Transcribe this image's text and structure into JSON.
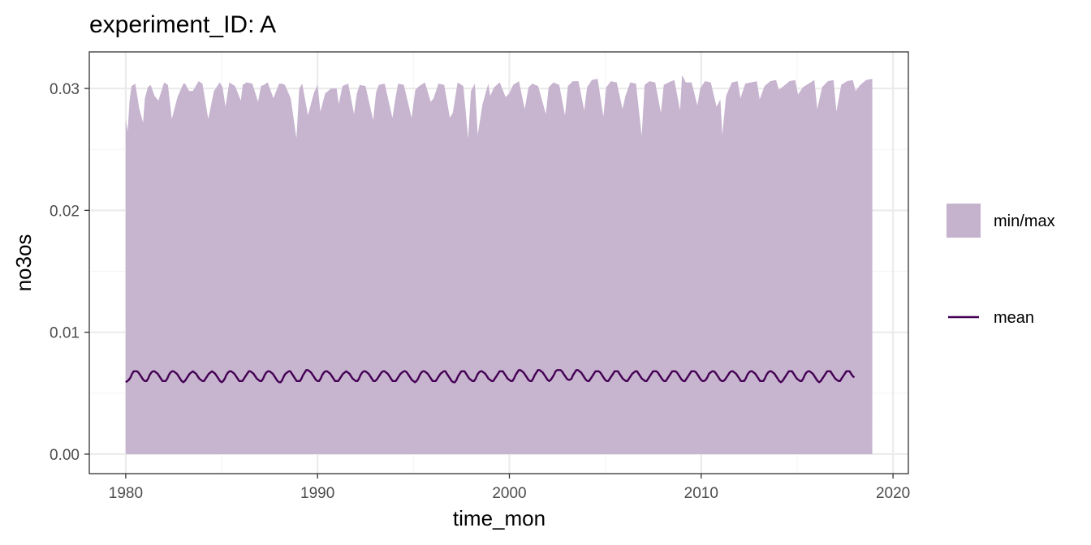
{
  "chart_data": {
    "type": "area",
    "title": "experiment_ID: A",
    "xlabel": "time_mon",
    "ylabel": "no3os",
    "xlim": [
      1978.1,
      2020.8
    ],
    "ylim": [
      -0.0016,
      0.033
    ],
    "x_ticks": [
      1980,
      1990,
      2000,
      2010,
      2020
    ],
    "x_tick_labels": [
      "1980",
      "1990",
      "2000",
      "2010",
      "2020"
    ],
    "y_ticks": [
      0.0,
      0.01,
      0.02,
      0.03
    ],
    "y_tick_labels": [
      "0.00",
      "0.01",
      "0.02",
      "0.03"
    ],
    "grid": true,
    "legend_position": "right",
    "legend": [
      {
        "label": "min/max",
        "kind": "fill"
      },
      {
        "label": "mean",
        "kind": "line"
      }
    ],
    "colors": {
      "band_fill": "#c5b2cd",
      "mean_line": "#440154",
      "panel_border": "#333333",
      "grid_major": "#ebebeb",
      "grid_minor": "#f5f5f5"
    },
    "x_range": [
      1980.0,
      2018.92
    ],
    "series": [
      {
        "name": "min/max",
        "kind": "ribbon",
        "x": [
          1980.0,
          1980.1,
          1980.2,
          1980.3,
          1980.5,
          1980.7,
          1980.9,
          1981.0,
          1981.15,
          1981.3,
          1981.5,
          1981.7,
          1982.0,
          1982.2,
          1982.4,
          1982.7,
          1983.0,
          1983.1,
          1983.3,
          1983.5,
          1983.8,
          1984.0,
          1984.3,
          1984.6,
          1984.9,
          1985.05,
          1985.2,
          1985.4,
          1985.7,
          1986.0,
          1986.1,
          1986.3,
          1986.6,
          1986.9,
          1987.05,
          1987.2,
          1987.4,
          1987.7,
          1988.0,
          1988.15,
          1988.3,
          1988.6,
          1988.9,
          1989.05,
          1989.2,
          1989.5,
          1989.8,
          1990.0,
          1990.15,
          1990.4,
          1990.7,
          1991.0,
          1991.1,
          1991.3,
          1991.6,
          1991.9,
          1992.05,
          1992.2,
          1992.5,
          1992.9,
          1993.05,
          1993.2,
          1993.5,
          1993.9,
          1994.05,
          1994.2,
          1994.5,
          1994.9,
          1995.1,
          1995.3,
          1995.6,
          1995.9,
          1996.05,
          1996.3,
          1996.6,
          1996.9,
          1997.05,
          1997.3,
          1997.6,
          1997.85,
          1998.0,
          1998.2,
          1998.35,
          1998.6,
          1998.9,
          1999.0,
          1999.2,
          1999.5,
          1999.8,
          2000.0,
          2000.2,
          2000.5,
          2000.8,
          2001.0,
          2001.2,
          2001.5,
          2001.9,
          2002.05,
          2002.3,
          2002.6,
          2002.9,
          2003.05,
          2003.3,
          2003.6,
          2003.9,
          2004.05,
          2004.3,
          2004.6,
          2004.9,
          2005.05,
          2005.3,
          2005.6,
          2005.9,
          2006.05,
          2006.3,
          2006.6,
          2006.9,
          2007.05,
          2007.3,
          2007.6,
          2007.9,
          2008.05,
          2008.3,
          2008.6,
          2008.9,
          2009.0,
          2009.2,
          2009.5,
          2009.8,
          2009.95,
          2010.2,
          2010.5,
          2010.8,
          2011.0,
          2011.1,
          2011.3,
          2011.6,
          2011.9,
          2012.05,
          2012.3,
          2012.6,
          2012.9,
          2013.05,
          2013.3,
          2013.6,
          2013.9,
          2014.05,
          2014.3,
          2014.6,
          2014.9,
          2015.05,
          2015.3,
          2015.6,
          2015.9,
          2016.05,
          2016.3,
          2016.6,
          2016.9,
          2017.05,
          2017.3,
          2017.6,
          2017.9,
          2018.05,
          2018.3,
          2018.6,
          2018.92
        ],
        "max": [
          0.0275,
          0.0265,
          0.029,
          0.0302,
          0.0304,
          0.0284,
          0.0272,
          0.0292,
          0.0301,
          0.0303,
          0.0294,
          0.029,
          0.0305,
          0.0303,
          0.0275,
          0.0293,
          0.0304,
          0.0304,
          0.0298,
          0.0298,
          0.0306,
          0.0304,
          0.0275,
          0.0298,
          0.0305,
          0.0301,
          0.0285,
          0.0305,
          0.0302,
          0.029,
          0.0303,
          0.0305,
          0.0304,
          0.0289,
          0.0302,
          0.0303,
          0.0305,
          0.0292,
          0.0304,
          0.0304,
          0.0303,
          0.0292,
          0.0259,
          0.03,
          0.0304,
          0.0278,
          0.0296,
          0.0303,
          0.0281,
          0.0296,
          0.03,
          0.03,
          0.0287,
          0.0302,
          0.0304,
          0.0279,
          0.0296,
          0.0303,
          0.0302,
          0.0274,
          0.0297,
          0.0303,
          0.0304,
          0.0276,
          0.0291,
          0.0304,
          0.0303,
          0.0276,
          0.0299,
          0.0302,
          0.0305,
          0.0289,
          0.0292,
          0.0304,
          0.0303,
          0.0276,
          0.028,
          0.0305,
          0.0302,
          0.0259,
          0.0298,
          0.0304,
          0.0262,
          0.0287,
          0.0304,
          0.0294,
          0.0301,
          0.0305,
          0.0293,
          0.0296,
          0.0303,
          0.0306,
          0.0283,
          0.0301,
          0.0304,
          0.0302,
          0.0279,
          0.0301,
          0.0305,
          0.0303,
          0.0278,
          0.0302,
          0.0306,
          0.0306,
          0.0282,
          0.0301,
          0.0307,
          0.0308,
          0.0277,
          0.0301,
          0.0306,
          0.0305,
          0.0283,
          0.0294,
          0.0305,
          0.0304,
          0.0261,
          0.0303,
          0.0306,
          0.0305,
          0.028,
          0.0303,
          0.0305,
          0.0307,
          0.0282,
          0.0311,
          0.0305,
          0.0305,
          0.0286,
          0.03,
          0.0306,
          0.0305,
          0.0285,
          0.0291,
          0.0262,
          0.0294,
          0.0305,
          0.0306,
          0.0292,
          0.0304,
          0.0305,
          0.0306,
          0.0291,
          0.0302,
          0.0306,
          0.0307,
          0.0299,
          0.0302,
          0.0306,
          0.0307,
          0.0295,
          0.0301,
          0.0304,
          0.0307,
          0.0283,
          0.0301,
          0.0306,
          0.0307,
          0.0281,
          0.0303,
          0.0306,
          0.0307,
          0.0298,
          0.0303,
          0.0307,
          0.0308
        ],
        "min": 0.0
      },
      {
        "name": "mean",
        "kind": "line",
        "x_start": 1980.0,
        "step": 0.0833,
        "values": [
          0.0059,
          0.006,
          0.0061,
          0.0063,
          0.0066,
          0.0068,
          0.0068,
          0.0068,
          0.0067,
          0.0065,
          0.0063,
          0.0061,
          0.006,
          0.006,
          0.0062,
          0.0065,
          0.0067,
          0.0068,
          0.0068,
          0.0067,
          0.0066,
          0.0064,
          0.0062,
          0.006,
          0.006,
          0.006,
          0.0062,
          0.0065,
          0.0067,
          0.0068,
          0.0068,
          0.0067,
          0.0066,
          0.0064,
          0.0062,
          0.006,
          0.0059,
          0.006,
          0.0062,
          0.0064,
          0.0066,
          0.0067,
          0.0068,
          0.0067,
          0.0066,
          0.0064,
          0.0062,
          0.0061,
          0.006,
          0.006,
          0.0062,
          0.0064,
          0.0066,
          0.0067,
          0.0068,
          0.0067,
          0.0066,
          0.0064,
          0.0062,
          0.006,
          0.0059,
          0.006,
          0.0062,
          0.0065,
          0.0067,
          0.0068,
          0.0068,
          0.0067,
          0.0066,
          0.0064,
          0.0062,
          0.006,
          0.006,
          0.006,
          0.0062,
          0.0064,
          0.0066,
          0.0068,
          0.0068,
          0.0067,
          0.0066,
          0.0064,
          0.0062,
          0.0061,
          0.006,
          0.006,
          0.0062,
          0.0065,
          0.0067,
          0.0068,
          0.0068,
          0.0067,
          0.0066,
          0.0064,
          0.0062,
          0.006,
          0.0059,
          0.0059,
          0.0061,
          0.0064,
          0.0066,
          0.0067,
          0.0068,
          0.0068,
          0.0066,
          0.0064,
          0.0062,
          0.006,
          0.006,
          0.006,
          0.0062,
          0.0065,
          0.0067,
          0.0069,
          0.0069,
          0.0068,
          0.0067,
          0.0065,
          0.0063,
          0.0061,
          0.006,
          0.006,
          0.0062,
          0.0065,
          0.0067,
          0.0068,
          0.0068,
          0.0067,
          0.0066,
          0.0064,
          0.0062,
          0.006,
          0.006,
          0.006,
          0.0062,
          0.0064,
          0.0066,
          0.0067,
          0.0068,
          0.0067,
          0.0066,
          0.0064,
          0.0062,
          0.0061,
          0.006,
          0.006,
          0.0062,
          0.0065,
          0.0067,
          0.0068,
          0.0068,
          0.0067,
          0.0066,
          0.0064,
          0.0062,
          0.006,
          0.006,
          0.0061,
          0.0063,
          0.0065,
          0.0067,
          0.0068,
          0.0068,
          0.0067,
          0.0066,
          0.0064,
          0.0062,
          0.006,
          0.006,
          0.006,
          0.0062,
          0.0064,
          0.0066,
          0.0067,
          0.0068,
          0.0068,
          0.0067,
          0.0065,
          0.0063,
          0.0061,
          0.006,
          0.0059,
          0.006,
          0.0062,
          0.0065,
          0.0067,
          0.0068,
          0.0068,
          0.0067,
          0.0066,
          0.0064,
          0.0062,
          0.006,
          0.006,
          0.006,
          0.0062,
          0.0064,
          0.0066,
          0.0067,
          0.0068,
          0.0068,
          0.0066,
          0.0064,
          0.0062,
          0.006,
          0.0059,
          0.0059,
          0.0061,
          0.0064,
          0.0066,
          0.0068,
          0.0068,
          0.0068,
          0.0066,
          0.0064,
          0.0062,
          0.0061,
          0.006,
          0.006,
          0.0062,
          0.0065,
          0.0067,
          0.0068,
          0.0068,
          0.0067,
          0.0066,
          0.0064,
          0.0062,
          0.0061,
          0.006,
          0.006,
          0.0062,
          0.0064,
          0.0066,
          0.0068,
          0.0068,
          0.0068,
          0.0066,
          0.0064,
          0.0062,
          0.0061,
          0.006,
          0.006,
          0.0062,
          0.0065,
          0.0067,
          0.0069,
          0.0069,
          0.0068,
          0.0067,
          0.0065,
          0.0063,
          0.0061,
          0.006,
          0.006,
          0.0062,
          0.0065,
          0.0067,
          0.0069,
          0.0069,
          0.0068,
          0.0067,
          0.0065,
          0.0063,
          0.0061,
          0.006,
          0.0061,
          0.0063,
          0.0065,
          0.0068,
          0.0069,
          0.0069,
          0.0069,
          0.0068,
          0.0066,
          0.0064,
          0.0062,
          0.0061,
          0.0061,
          0.0062,
          0.0065,
          0.0067,
          0.0069,
          0.0069,
          0.0068,
          0.0067,
          0.0065,
          0.0063,
          0.0061,
          0.006,
          0.006,
          0.0062,
          0.0064,
          0.0066,
          0.0068,
          0.0068,
          0.0068,
          0.0067,
          0.0065,
          0.0063,
          0.0061,
          0.006,
          0.006,
          0.0062,
          0.0064,
          0.0066,
          0.0068,
          0.0068,
          0.0068,
          0.0066,
          0.0064,
          0.0062,
          0.0061,
          0.006,
          0.006,
          0.0062,
          0.0064,
          0.0066,
          0.0067,
          0.0068,
          0.0068,
          0.0066,
          0.0064,
          0.0062,
          0.0061,
          0.006,
          0.006,
          0.0062,
          0.0064,
          0.0066,
          0.0068,
          0.0068,
          0.0068,
          0.0067,
          0.0065,
          0.0063,
          0.0061,
          0.006,
          0.006,
          0.0062,
          0.0064,
          0.0066,
          0.0068,
          0.0068,
          0.0068,
          0.0067,
          0.0065,
          0.0063,
          0.0061,
          0.006,
          0.006,
          0.0062,
          0.0064,
          0.0066,
          0.0068,
          0.0068,
          0.0068,
          0.0067,
          0.0065,
          0.0063,
          0.0061,
          0.006,
          0.006,
          0.0061,
          0.0063,
          0.0066,
          0.0067,
          0.0068,
          0.0068,
          0.0067,
          0.0065,
          0.0063,
          0.0061,
          0.006,
          0.006,
          0.0061,
          0.0063,
          0.0065,
          0.0067,
          0.0068,
          0.0068,
          0.0067,
          0.0066,
          0.0064,
          0.0062,
          0.006,
          0.006,
          0.006,
          0.0062,
          0.0065,
          0.0067,
          0.0068,
          0.0068,
          0.0067,
          0.0066,
          0.0064,
          0.0062,
          0.006,
          0.006,
          0.006,
          0.0062,
          0.0065,
          0.0067,
          0.0068,
          0.0068,
          0.0067,
          0.0066,
          0.0064,
          0.0062,
          0.006,
          0.0059,
          0.006,
          0.0062,
          0.0064,
          0.0066,
          0.0068,
          0.0068,
          0.0068,
          0.0066,
          0.0064,
          0.0062,
          0.0061,
          0.006,
          0.006,
          0.0062,
          0.0065,
          0.0067,
          0.0068,
          0.0068,
          0.0067,
          0.0066,
          0.0064,
          0.0062,
          0.006,
          0.0059,
          0.006,
          0.0062,
          0.0064,
          0.0066,
          0.0068,
          0.0068,
          0.0068,
          0.0066,
          0.0064,
          0.0062,
          0.0061,
          0.006,
          0.006,
          0.0062,
          0.0064,
          0.0066,
          0.0068,
          0.0068,
          0.0068,
          0.0066,
          0.0064,
          0.0063
        ]
      }
    ]
  }
}
